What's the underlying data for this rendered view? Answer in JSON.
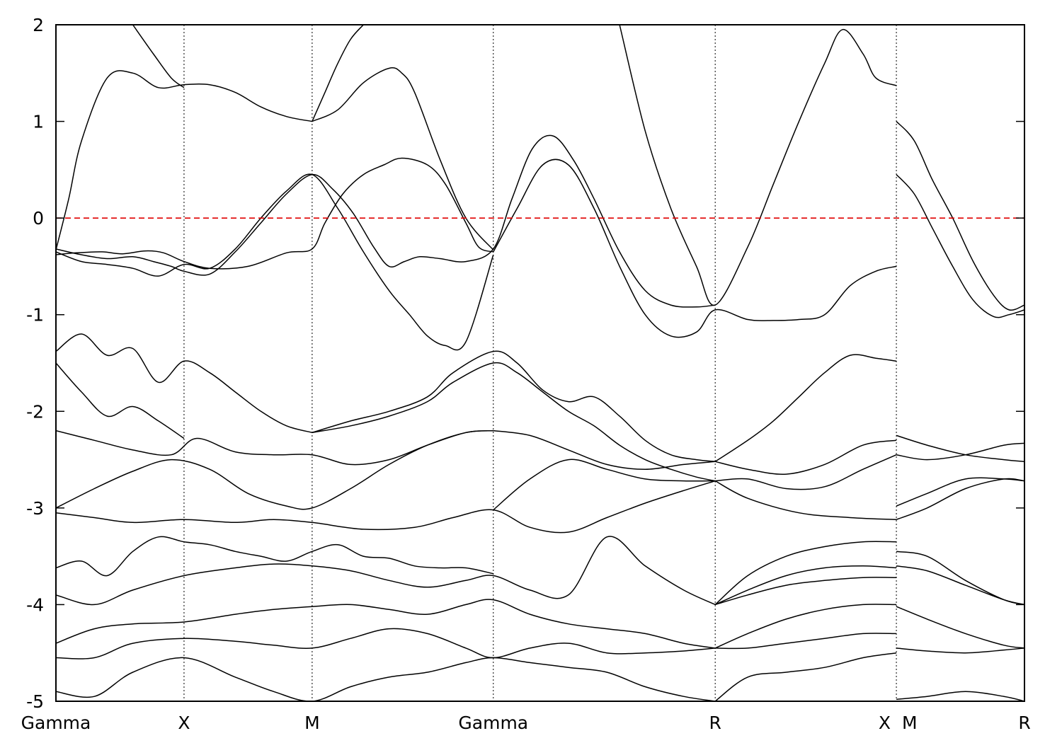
{
  "chart_data": {
    "type": "line",
    "title": "",
    "xlabel": "",
    "ylabel": "",
    "ylim": [
      -5,
      2
    ],
    "yticks": [
      -5,
      -4,
      -3,
      -2,
      -1,
      0,
      1,
      2
    ],
    "grid": "vertical dotted lines at high-symmetry points",
    "fermi_level": {
      "y": 0,
      "color": "#e00000",
      "style": "dashed"
    },
    "kpoints": [
      {
        "label": "Gamma",
        "k": 0.0
      },
      {
        "label": "X",
        "k": 0.5
      },
      {
        "label": "M",
        "k": 1.0
      },
      {
        "label": "Gamma",
        "k": 1.7071
      },
      {
        "label": "R",
        "k": 2.5731
      },
      {
        "label": "X",
        "k": 3.2802
      },
      {
        "label": "M",
        "k": 3.2802
      },
      {
        "label": "R",
        "k": 3.7802
      }
    ],
    "segment_break": {
      "k": 3.2802,
      "note": "discontinuity X|M"
    },
    "line_color": "#000000",
    "series": [
      {
        "k": [
          0.0,
          0.08,
          0.18,
          0.26,
          0.35,
          0.42,
          0.5,
          0.6,
          0.75,
          0.9,
          1.0,
          1.05,
          1.12,
          1.2,
          1.28,
          1.35,
          1.45,
          1.52,
          1.6,
          1.65,
          1.7071
        ],
        "values": [
          -0.38,
          -0.36,
          -0.35,
          -0.37,
          -0.34,
          -0.36,
          -0.45,
          -0.52,
          -0.5,
          -0.36,
          -0.32,
          -0.05,
          0.25,
          0.45,
          0.55,
          0.62,
          0.55,
          0.35,
          -0.05,
          -0.3,
          -0.35
        ]
      },
      {
        "k": [
          0.0,
          0.1,
          0.2,
          0.3,
          0.38,
          0.45,
          0.5,
          0.6,
          0.7,
          0.8,
          0.9,
          1.0,
          1.08,
          1.16,
          1.24,
          1.3,
          1.36,
          1.42,
          1.5,
          1.6,
          1.7071,
          1.78,
          1.86,
          1.94,
          2.02,
          2.1,
          2.2,
          2.3,
          2.4,
          2.5,
          2.5731
        ],
        "values": [
          -0.32,
          -0.38,
          -0.42,
          -0.4,
          -0.45,
          -0.5,
          -0.55,
          -0.58,
          -0.35,
          -0.05,
          0.25,
          0.45,
          0.3,
          0.05,
          -0.3,
          -0.5,
          -0.45,
          -0.4,
          -0.42,
          -0.45,
          -0.32,
          0.2,
          0.72,
          0.85,
          0.6,
          0.2,
          -0.35,
          -0.75,
          -0.9,
          -0.92,
          -0.9
        ]
      },
      {
        "k": [
          0.0,
          0.1,
          0.2,
          0.3,
          0.4,
          0.5,
          0.6,
          0.7,
          0.8,
          0.9,
          1.0,
          1.1,
          1.2,
          1.3,
          1.38,
          1.45,
          1.52,
          1.6,
          1.7071
        ],
        "values": [
          -0.35,
          -0.45,
          -0.48,
          -0.52,
          -0.6,
          -0.48,
          -0.52,
          -0.32,
          0.0,
          0.28,
          0.45,
          0.1,
          -0.35,
          -0.75,
          -1.0,
          -1.22,
          -1.32,
          -1.28,
          -0.38
        ]
      },
      {
        "k": [
          0.0,
          0.05,
          0.1,
          0.2,
          0.3,
          0.4,
          0.5,
          0.6,
          0.7,
          0.8,
          0.9,
          1.0
        ],
        "values": [
          -0.33,
          0.2,
          0.8,
          1.45,
          1.5,
          1.35,
          1.38,
          1.38,
          1.3,
          1.15,
          1.05,
          1.0
        ]
      },
      {
        "k": [
          1.0,
          1.1,
          1.2,
          1.3,
          1.35,
          1.4,
          1.5,
          1.6,
          1.7071
        ],
        "values": [
          1.0,
          1.12,
          1.4,
          1.55,
          1.5,
          1.3,
          0.6,
          0.0,
          -0.33
        ]
      },
      {
        "k": [
          0.3,
          0.38,
          0.45,
          0.5
        ],
        "values": [
          2.0,
          1.7,
          1.45,
          1.35
        ]
      },
      {
        "k": [
          1.0,
          1.05,
          1.1,
          1.15,
          1.2
        ],
        "values": [
          1.0,
          1.3,
          1.6,
          1.85,
          2.0
        ]
      },
      {
        "k": [
          1.7071,
          1.8,
          1.9,
          2.0,
          2.1,
          2.2,
          2.3,
          2.4,
          2.5,
          2.5731,
          2.7,
          2.8,
          2.9,
          3.0,
          3.1,
          3.2,
          3.2802
        ],
        "values": [
          -0.35,
          0.1,
          0.55,
          0.55,
          0.1,
          -0.5,
          -1.0,
          -1.22,
          -1.18,
          -0.95,
          -1.05,
          -1.06,
          -1.05,
          -1.0,
          -0.7,
          -0.55,
          -0.5
        ]
      },
      {
        "k": [
          2.2,
          2.3,
          2.4,
          2.5,
          2.5731,
          2.7,
          2.8,
          2.9,
          3.0,
          3.07,
          3.15,
          3.2,
          3.2802
        ],
        "values": [
          2.0,
          0.9,
          0.1,
          -0.5,
          -0.9,
          -0.3,
          0.35,
          1.0,
          1.6,
          1.95,
          1.7,
          1.45,
          1.37
        ]
      },
      {
        "k": [
          3.2802,
          3.35,
          3.42,
          3.5,
          3.58,
          3.66,
          3.72,
          3.7802
        ],
        "values": [
          1.0,
          0.8,
          0.4,
          0.0,
          -0.45,
          -0.8,
          -0.95,
          -0.9
        ]
      },
      {
        "k": [
          3.2802,
          3.35,
          3.42,
          3.5,
          3.58,
          3.66,
          3.72,
          3.7802
        ],
        "values": [
          0.45,
          0.25,
          -0.1,
          -0.5,
          -0.85,
          -1.02,
          -1.0,
          -0.95
        ]
      },
      {
        "k": [
          0.0,
          0.1,
          0.2,
          0.3,
          0.4,
          0.5,
          0.6,
          0.7,
          0.8,
          0.9,
          1.0
        ],
        "values": [
          -1.38,
          -1.2,
          -1.42,
          -1.35,
          -1.7,
          -1.48,
          -1.6,
          -1.8,
          -2.0,
          -2.15,
          -2.22
        ]
      },
      {
        "k": [
          0.0,
          0.1,
          0.2,
          0.3,
          0.4,
          0.5
        ],
        "values": [
          -1.5,
          -1.8,
          -2.05,
          -1.95,
          -2.1,
          -2.28
        ]
      },
      {
        "k": [
          1.0,
          1.15,
          1.3,
          1.45,
          1.55,
          1.7071,
          1.8,
          1.9,
          2.0,
          2.1,
          2.2,
          2.3,
          2.4,
          2.5,
          2.5731
        ],
        "values": [
          -2.22,
          -2.1,
          -2.0,
          -1.85,
          -1.6,
          -1.38,
          -1.5,
          -1.78,
          -1.9,
          -1.85,
          -2.05,
          -2.3,
          -2.45,
          -2.5,
          -2.52
        ]
      },
      {
        "k": [
          1.0,
          1.15,
          1.3,
          1.45,
          1.55,
          1.7071,
          1.8,
          1.9,
          2.0,
          2.1,
          2.2,
          2.3,
          2.4,
          2.5,
          2.5731
        ],
        "values": [
          -2.22,
          -2.15,
          -2.05,
          -1.9,
          -1.7,
          -1.5,
          -1.6,
          -1.8,
          -2.0,
          -2.15,
          -2.35,
          -2.5,
          -2.6,
          -2.68,
          -2.72
        ]
      },
      {
        "k": [
          2.5731,
          2.7,
          2.8,
          2.9,
          3.0,
          3.1,
          3.2,
          3.2802
        ],
        "values": [
          -2.52,
          -2.3,
          -2.1,
          -1.85,
          -1.6,
          -1.42,
          -1.45,
          -1.48
        ]
      },
      {
        "k": [
          0.0,
          0.15,
          0.3,
          0.45,
          0.55,
          0.7,
          0.85,
          1.0,
          1.15,
          1.3,
          1.45,
          1.6,
          1.7071
        ],
        "values": [
          -2.2,
          -2.3,
          -2.4,
          -2.45,
          -2.28,
          -2.42,
          -2.45,
          -2.45,
          -2.55,
          -2.5,
          -2.35,
          -2.22,
          -2.2
        ]
      },
      {
        "k": [
          0.0,
          0.15,
          0.3,
          0.45,
          0.6,
          0.75,
          0.9,
          1.0,
          1.15,
          1.3,
          1.45,
          1.6,
          1.7071
        ],
        "values": [
          -3.0,
          -2.8,
          -2.62,
          -2.5,
          -2.6,
          -2.85,
          -2.98,
          -3.0,
          -2.8,
          -2.55,
          -2.35,
          -2.22,
          -2.2
        ]
      },
      {
        "k": [
          1.7071,
          1.85,
          2.0,
          2.15,
          2.3,
          2.45,
          2.5731
        ],
        "values": [
          -2.2,
          -2.25,
          -2.4,
          -2.55,
          -2.6,
          -2.55,
          -2.52
        ]
      },
      {
        "k": [
          1.7071,
          1.85,
          2.0,
          2.15,
          2.3,
          2.45,
          2.5731
        ],
        "values": [
          -3.02,
          -2.7,
          -2.5,
          -2.6,
          -2.7,
          -2.72,
          -2.72
        ]
      },
      {
        "k": [
          2.5731,
          2.7,
          2.85,
          3.0,
          3.15,
          3.2802
        ],
        "values": [
          -2.72,
          -2.7,
          -2.8,
          -2.78,
          -2.6,
          -2.45
        ]
      },
      {
        "k": [
          2.5731,
          2.7,
          2.85,
          3.0,
          3.15,
          3.2802
        ],
        "values": [
          -2.52,
          -2.6,
          -2.65,
          -2.55,
          -2.35,
          -2.3
        ]
      },
      {
        "k": [
          0.0,
          0.15,
          0.3,
          0.5,
          0.7,
          0.85,
          1.0,
          1.2,
          1.4,
          1.55,
          1.7071,
          1.85,
          2.0,
          2.15,
          2.3,
          2.45,
          2.5731
        ],
        "values": [
          -3.05,
          -3.1,
          -3.15,
          -3.12,
          -3.15,
          -3.12,
          -3.15,
          -3.22,
          -3.2,
          -3.1,
          -3.02,
          -3.2,
          -3.25,
          -3.1,
          -2.95,
          -2.82,
          -2.72
        ]
      },
      {
        "k": [
          2.5731,
          2.7,
          2.9,
          3.1,
          3.2802
        ],
        "values": [
          -2.72,
          -2.9,
          -3.05,
          -3.1,
          -3.12
        ]
      },
      {
        "k": [
          0.0,
          0.1,
          0.2,
          0.3,
          0.4,
          0.5,
          0.6,
          0.7,
          0.8,
          0.9,
          1.0,
          1.1,
          1.2,
          1.3,
          1.4,
          1.5,
          1.6,
          1.7071
        ],
        "values": [
          -3.62,
          -3.55,
          -3.7,
          -3.45,
          -3.3,
          -3.35,
          -3.38,
          -3.45,
          -3.5,
          -3.55,
          -3.45,
          -3.38,
          -3.5,
          -3.52,
          -3.6,
          -3.62,
          -3.62,
          -3.68
        ]
      },
      {
        "k": [
          0.0,
          0.15,
          0.3,
          0.5,
          0.7,
          0.85,
          1.0,
          1.15,
          1.3,
          1.45,
          1.6,
          1.7071,
          1.85,
          2.0,
          2.15,
          2.3,
          2.45,
          2.5731
        ],
        "values": [
          -3.9,
          -4.0,
          -3.85,
          -3.7,
          -3.62,
          -3.58,
          -3.6,
          -3.65,
          -3.75,
          -3.82,
          -3.75,
          -3.7,
          -3.85,
          -3.9,
          -3.3,
          -3.6,
          -3.85,
          -4.0
        ]
      },
      {
        "k": [
          2.5731,
          2.7,
          2.85,
          3.0,
          3.15,
          3.2802
        ],
        "values": [
          -4.0,
          -3.7,
          -3.5,
          -3.4,
          -3.35,
          -3.35
        ]
      },
      {
        "k": [
          2.5731,
          2.7,
          2.85,
          3.0,
          3.15,
          3.2802
        ],
        "values": [
          -4.0,
          -3.85,
          -3.7,
          -3.62,
          -3.6,
          -3.62
        ]
      },
      {
        "k": [
          2.5731,
          2.7,
          2.85,
          3.0,
          3.15,
          3.2802
        ],
        "values": [
          -4.0,
          -3.9,
          -3.8,
          -3.75,
          -3.72,
          -3.72
        ]
      },
      {
        "k": [
          0.0,
          0.15,
          0.3,
          0.5,
          0.7,
          0.85,
          1.0,
          1.15,
          1.3,
          1.45,
          1.6,
          1.7071,
          1.85,
          2.0,
          2.15,
          2.3,
          2.45,
          2.5731
        ],
        "values": [
          -4.4,
          -4.25,
          -4.2,
          -4.18,
          -4.1,
          -4.05,
          -4.02,
          -4.0,
          -4.05,
          -4.1,
          -4.0,
          -3.95,
          -4.1,
          -4.2,
          -4.25,
          -4.3,
          -4.4,
          -4.45
        ]
      },
      {
        "k": [
          2.5731,
          2.7,
          2.85,
          3.0,
          3.15,
          3.2802
        ],
        "values": [
          -4.45,
          -4.3,
          -4.15,
          -4.05,
          -4.0,
          -4.0
        ]
      },
      {
        "k": [
          0.0,
          0.15,
          0.3,
          0.5,
          0.7,
          0.85,
          1.0,
          1.15,
          1.3,
          1.45,
          1.6,
          1.7071,
          1.85,
          2.0,
          2.15,
          2.3,
          2.45,
          2.5731
        ],
        "values": [
          -4.55,
          -4.55,
          -4.4,
          -4.35,
          -4.38,
          -4.42,
          -4.45,
          -4.35,
          -4.25,
          -4.3,
          -4.45,
          -4.55,
          -4.45,
          -4.4,
          -4.5,
          -4.5,
          -4.48,
          -4.45
        ]
      },
      {
        "k": [
          2.5731,
          2.7,
          2.85,
          3.0,
          3.15,
          3.2802
        ],
        "values": [
          -4.45,
          -4.45,
          -4.4,
          -4.35,
          -4.3,
          -4.3
        ]
      },
      {
        "k": [
          0.0,
          0.15,
          0.3,
          0.5,
          0.7,
          0.85,
          1.0,
          1.15,
          1.3,
          1.45,
          1.6,
          1.7071,
          1.85,
          2.0,
          2.15,
          2.3,
          2.45,
          2.5731
        ],
        "values": [
          -4.9,
          -4.95,
          -4.7,
          -4.55,
          -4.75,
          -4.9,
          -5.0,
          -4.85,
          -4.75,
          -4.7,
          -4.6,
          -4.55,
          -4.6,
          -4.65,
          -4.7,
          -4.85,
          -4.95,
          -5.0
        ]
      },
      {
        "k": [
          2.5731,
          2.7,
          2.85,
          3.0,
          3.15,
          3.2802
        ],
        "values": [
          -5.0,
          -4.75,
          -4.7,
          -4.65,
          -4.55,
          -4.5
        ]
      },
      {
        "k": [
          3.2802,
          3.4,
          3.55,
          3.7,
          3.7802
        ],
        "values": [
          -2.25,
          -2.35,
          -2.45,
          -2.5,
          -2.52
        ]
      },
      {
        "k": [
          3.2802,
          3.4,
          3.55,
          3.7,
          3.7802
        ],
        "values": [
          -2.98,
          -2.85,
          -2.7,
          -2.7,
          -2.72
        ]
      },
      {
        "k": [
          3.2802,
          3.4,
          3.55,
          3.7,
          3.7802
        ],
        "values": [
          -3.12,
          -3.0,
          -2.8,
          -2.7,
          -2.72
        ]
      },
      {
        "k": [
          3.2802,
          3.4,
          3.55,
          3.7,
          3.7802
        ],
        "values": [
          -3.45,
          -3.5,
          -3.75,
          -3.95,
          -4.0
        ]
      },
      {
        "k": [
          3.2802,
          3.4,
          3.55,
          3.7,
          3.7802
        ],
        "values": [
          -3.6,
          -3.65,
          -3.8,
          -3.95,
          -4.0
        ]
      },
      {
        "k": [
          3.2802,
          3.4,
          3.55,
          3.7,
          3.7802
        ],
        "values": [
          -4.02,
          -4.15,
          -4.3,
          -4.42,
          -4.45
        ]
      },
      {
        "k": [
          3.2802,
          3.4,
          3.55,
          3.7,
          3.7802
        ],
        "values": [
          -4.45,
          -4.48,
          -4.5,
          -4.47,
          -4.45
        ]
      },
      {
        "k": [
          3.2802,
          3.4,
          3.55,
          3.7,
          3.7802
        ],
        "values": [
          -4.98,
          -4.95,
          -4.9,
          -4.95,
          -5.0
        ]
      },
      {
        "k": [
          3.2802,
          3.4,
          3.55,
          3.7,
          3.7802
        ],
        "values": [
          -2.45,
          -2.5,
          -2.45,
          -2.35,
          -2.33
        ]
      }
    ]
  }
}
